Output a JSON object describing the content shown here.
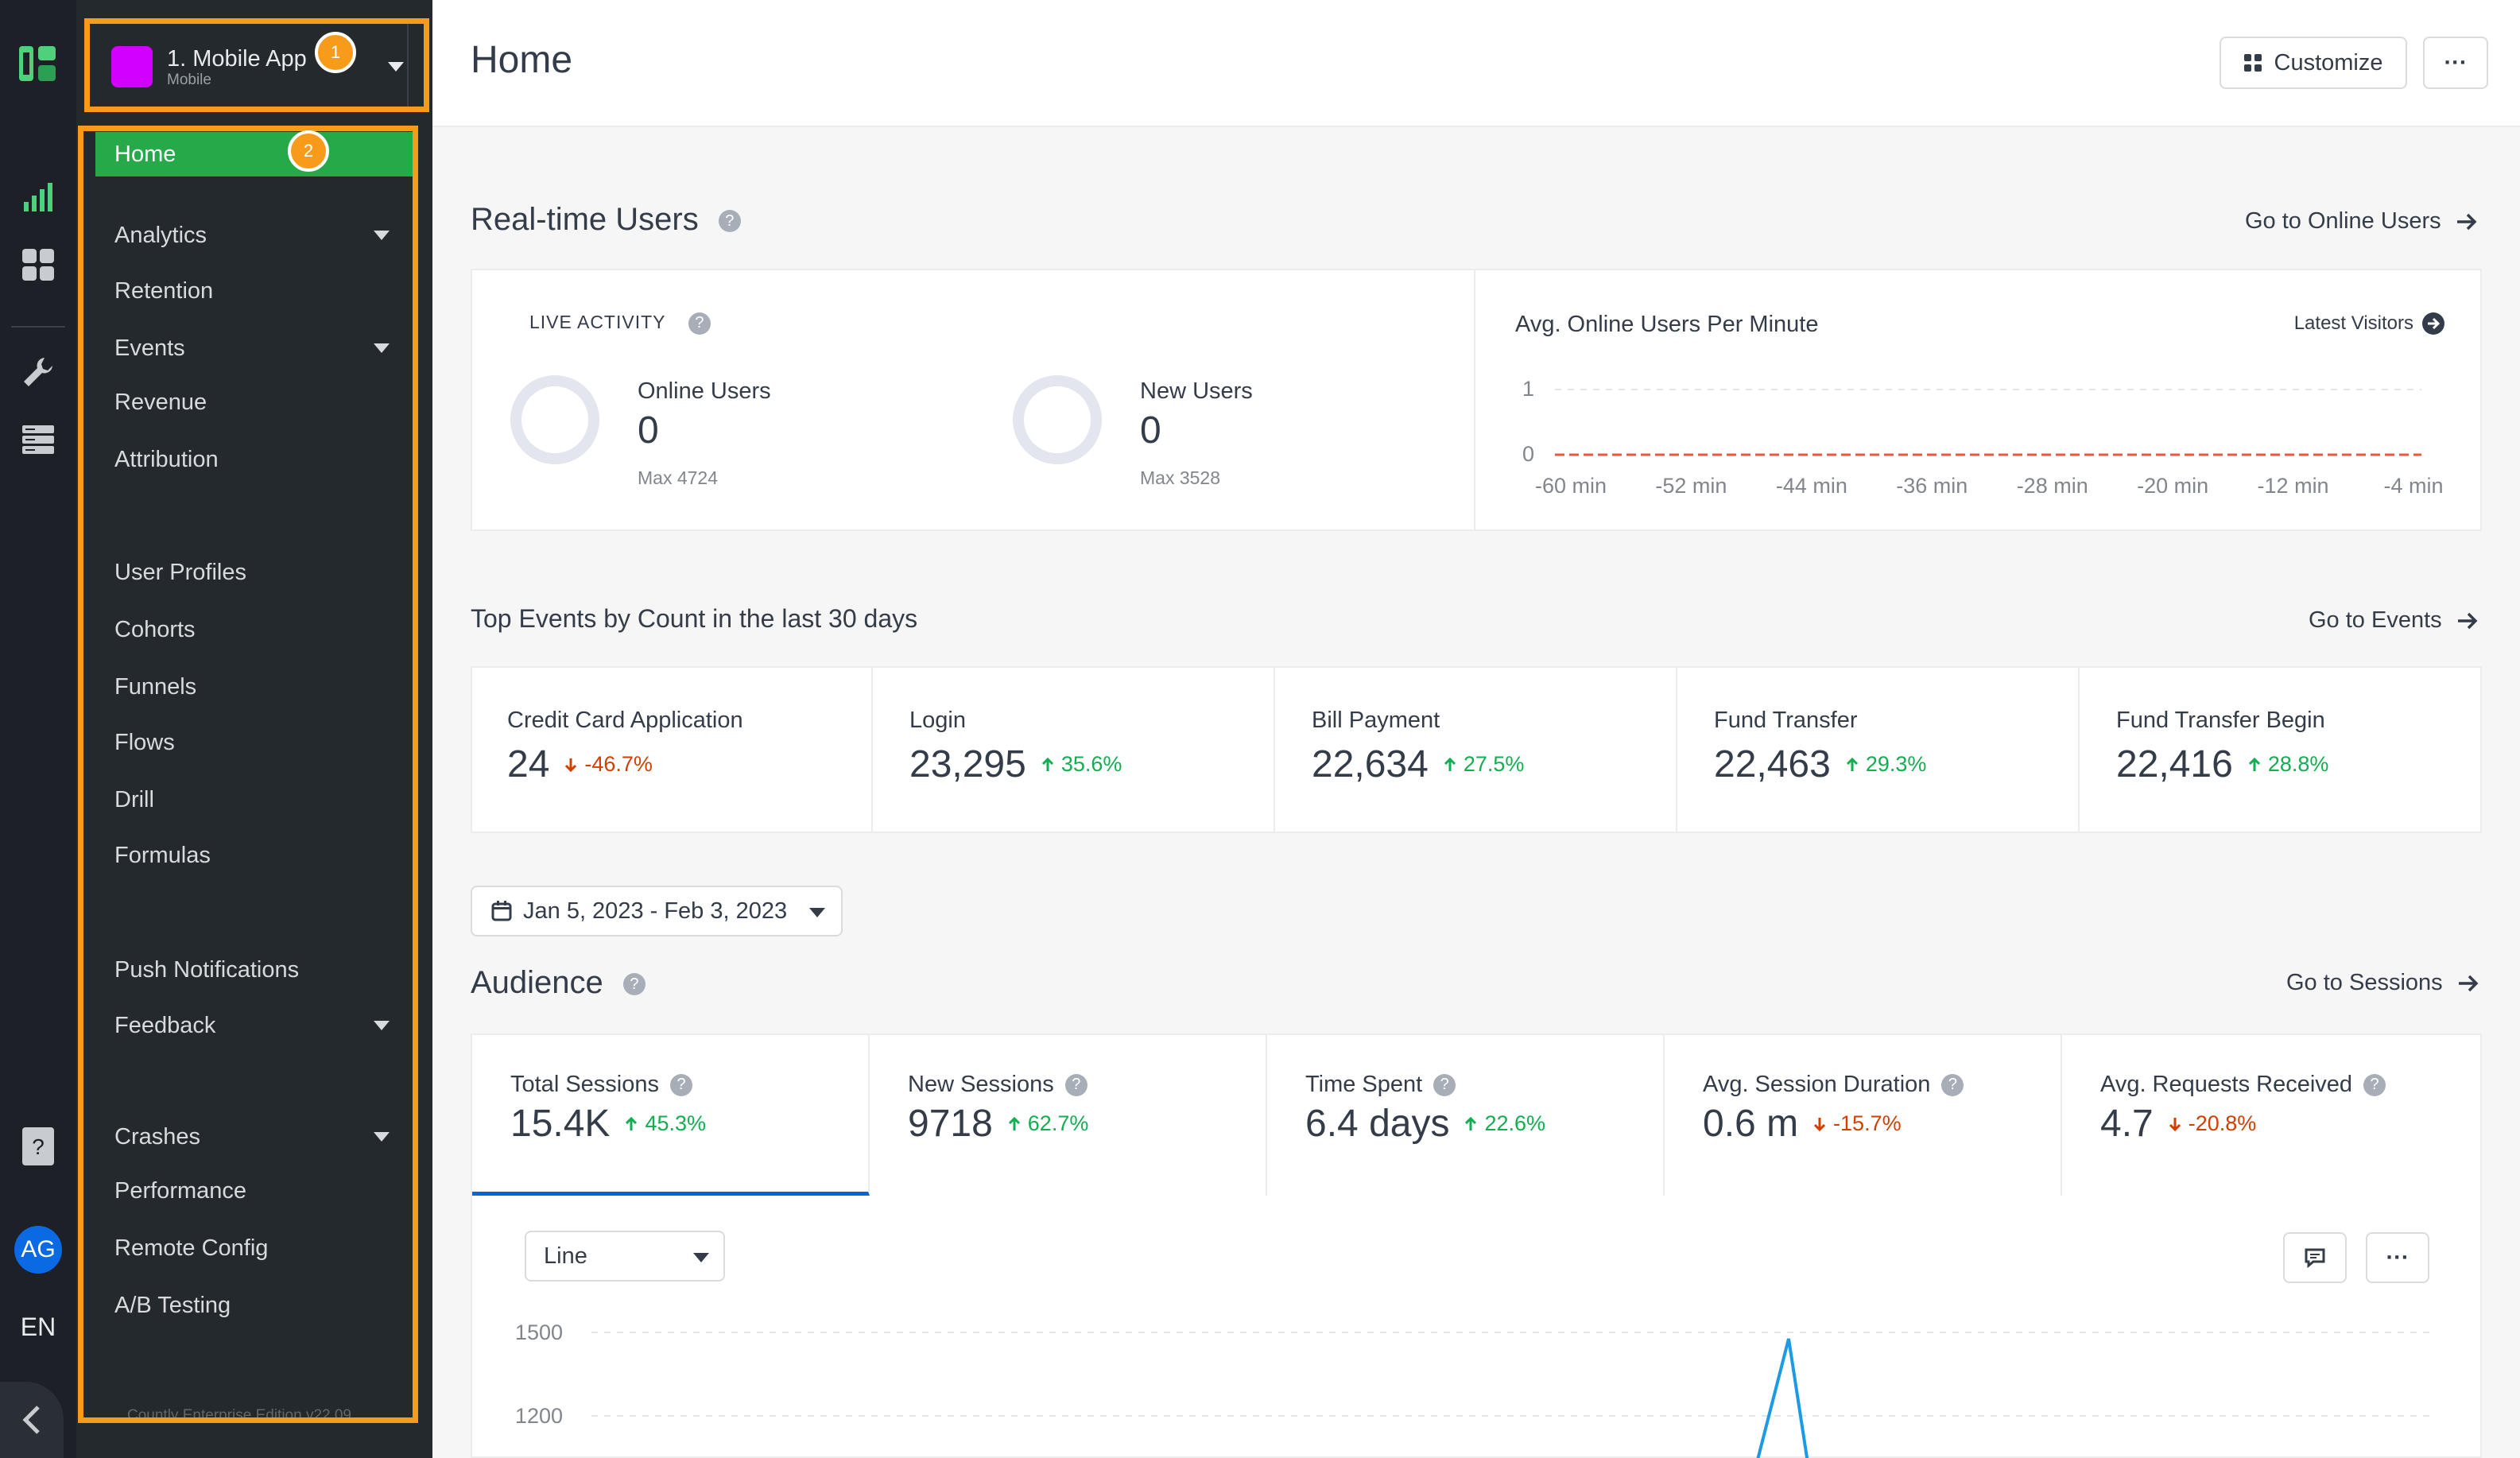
{
  "rail": {
    "avatar_initials": "AG",
    "language": "EN"
  },
  "app_selector": {
    "name": "1. Mobile App",
    "type": "Mobile",
    "color": "#d100ff"
  },
  "annotations": {
    "badge_1": "1",
    "badge_2": "2"
  },
  "sidebar": {
    "items": [
      {
        "label": "Home",
        "active": true
      },
      {
        "label": "Analytics",
        "has_caret": true
      },
      {
        "label": "Retention"
      },
      {
        "label": "Events",
        "has_caret": true
      },
      {
        "label": "Revenue"
      },
      {
        "label": "Attribution"
      },
      {
        "label": "User Profiles"
      },
      {
        "label": "Cohorts"
      },
      {
        "label": "Funnels"
      },
      {
        "label": "Flows"
      },
      {
        "label": "Drill"
      },
      {
        "label": "Formulas"
      },
      {
        "label": "Push Notifications"
      },
      {
        "label": "Feedback",
        "has_caret": true
      },
      {
        "label": "Crashes",
        "has_caret": true
      },
      {
        "label": "Performance"
      },
      {
        "label": "Remote Config"
      },
      {
        "label": "A/B Testing"
      }
    ],
    "version": "Countly Enterprise Edition v22.09"
  },
  "header": {
    "title": "Home",
    "customize_label": "Customize",
    "more_label": "···"
  },
  "realtime": {
    "title": "Real-time Users",
    "go_label": "Go to Online Users",
    "live_label": "LIVE ACTIVITY",
    "online": {
      "label": "Online Users",
      "value": "0",
      "max": "Max 4724"
    },
    "new": {
      "label": "New Users",
      "value": "0",
      "max": "Max 3528"
    },
    "chart_title": "Avg. Online Users Per Minute",
    "latest_label": "Latest Visitors"
  },
  "chart_data": {
    "type": "line",
    "title": "Avg. Online Users Per Minute",
    "categories": [
      "-60 min",
      "-52 min",
      "-44 min",
      "-36 min",
      "-28 min",
      "-20 min",
      "-12 min",
      "-4 min"
    ],
    "values": [
      0,
      0,
      0,
      0,
      0,
      0,
      0,
      0
    ],
    "ylim": [
      0,
      1
    ],
    "yticks": [
      "1",
      "0"
    ],
    "color": "#e8593f"
  },
  "top_events": {
    "title": "Top Events by Count in the last 30 days",
    "go_label": "Go to Events",
    "items": [
      {
        "name": "Credit Card Application",
        "count": "24",
        "change": "-46.7%",
        "dir": "down"
      },
      {
        "name": "Login",
        "count": "23,295",
        "change": "35.6%",
        "dir": "up"
      },
      {
        "name": "Bill Payment",
        "count": "22,634",
        "change": "27.5%",
        "dir": "up"
      },
      {
        "name": "Fund Transfer",
        "count": "22,463",
        "change": "29.3%",
        "dir": "up"
      },
      {
        "name": "Fund Transfer Begin",
        "count": "22,416",
        "change": "28.8%",
        "dir": "up"
      }
    ]
  },
  "date_range": {
    "label": "Jan 5, 2023 - Feb 3, 2023"
  },
  "audience": {
    "title": "Audience",
    "go_label": "Go to Sessions",
    "cards": [
      {
        "label": "Total Sessions",
        "value": "15.4K",
        "change": "45.3%",
        "dir": "up",
        "active": true
      },
      {
        "label": "New Sessions",
        "value": "9718",
        "change": "62.7%",
        "dir": "up"
      },
      {
        "label": "Time Spent",
        "value": "6.4 days",
        "change": "22.6%",
        "dir": "up"
      },
      {
        "label": "Avg. Session Duration",
        "value": "0.6 m",
        "change": "-15.7%",
        "dir": "down"
      },
      {
        "label": "Avg. Requests Received",
        "value": "4.7",
        "change": "-20.8%",
        "dir": "down"
      }
    ],
    "chart_type_value": "Line",
    "sessions_chart": {
      "type": "line",
      "yticks": [
        "1500",
        "1200"
      ],
      "ylim": [
        1000,
        1600
      ],
      "visible_peak": 1500
    }
  }
}
